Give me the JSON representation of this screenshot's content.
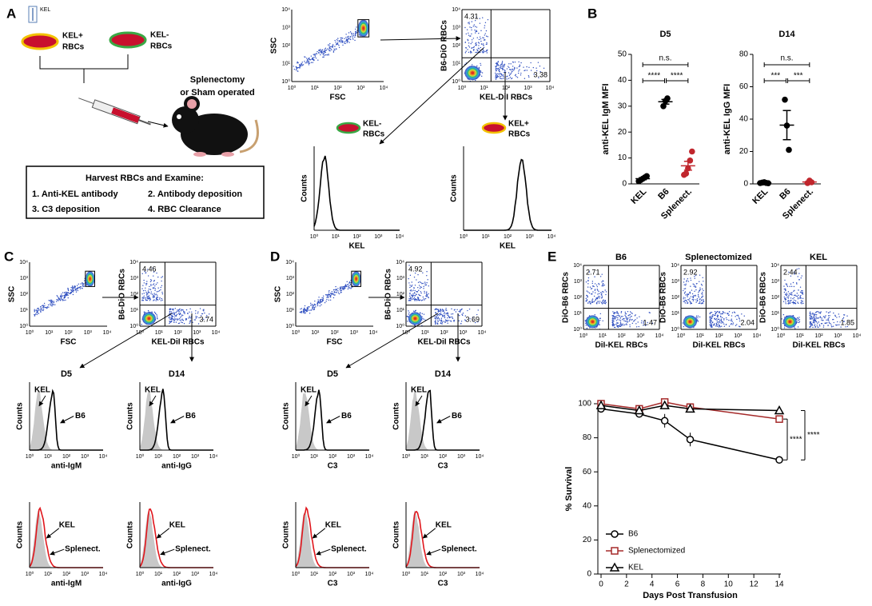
{
  "log_ticks": [
    "10⁰",
    "10¹",
    "10²",
    "10³",
    "10⁴"
  ],
  "panel_a": {
    "letter": "A",
    "kel_tag": "KEL",
    "kel_pos": [
      "KEL+",
      "RBCs"
    ],
    "kel_neg": [
      "KEL-",
      "RBCs"
    ],
    "surgery": [
      "Splenectomy",
      "or Sham operated"
    ],
    "box_title": "Harvest RBCs and Examine:",
    "box_items": [
      "1. Anti-KEL antibody",
      "2. Antibody deposition",
      "3. C3 deposition",
      "4. RBC Clearance"
    ],
    "gate": {
      "y_label": "SSC",
      "x_label": "FSC"
    },
    "quad": {
      "y_label": "B6-DiO RBCs",
      "x_label": "KEL-DiI RBCs",
      "upper_left": 4.31,
      "lower_right": 3.38
    },
    "hist_neg": {
      "title": [
        "KEL-",
        "RBCs"
      ],
      "y_label": "Counts",
      "x_label": "KEL"
    },
    "hist_pos": {
      "title": [
        "KEL+",
        "RBCs"
      ],
      "y_label": "Counts",
      "x_label": "KEL"
    }
  },
  "panel_b": {
    "letter": "B",
    "charts": [
      {
        "type": "scatter",
        "title": "D5",
        "y_label": "anti-KEL IgM MFI",
        "categories": [
          "KEL",
          "B6",
          "Splenect."
        ],
        "ylim": [
          0,
          50
        ],
        "yticks": [
          0,
          10,
          20,
          30,
          40,
          50
        ],
        "groups": [
          {
            "color": "#000000",
            "points": [
              1,
              1.5,
              2,
              2.5,
              3
            ],
            "mean": 2,
            "sem": 0.4
          },
          {
            "color": "#000000",
            "points": [
              30,
              32,
              33
            ],
            "mean": 31.7,
            "sem": 0.9
          },
          {
            "color": "#c0262d",
            "points": [
              3.5,
              4,
              6,
              9,
              12.5
            ],
            "mean": 7,
            "sem": 1.7
          }
        ],
        "significance": [
          "n.s.",
          "****",
          "****"
        ]
      },
      {
        "type": "scatter",
        "title": "D14",
        "y_label": "anti-KEL IgG MFI",
        "categories": [
          "KEL",
          "B6",
          "Splenect."
        ],
        "ylim": [
          0,
          80
        ],
        "yticks": [
          0,
          20,
          40,
          60,
          80
        ],
        "groups": [
          {
            "color": "#000000",
            "points": [
              0.5,
              0.8,
              1,
              0.6,
              0.4
            ],
            "mean": 0.7,
            "sem": 0.1
          },
          {
            "color": "#000000",
            "points": [
              52,
              36,
              21
            ],
            "mean": 36.3,
            "sem": 9
          },
          {
            "color": "#c0262d",
            "points": [
              0.5,
              2,
              1
            ],
            "mean": 1.2,
            "sem": 0.4
          }
        ],
        "significance": [
          "n.s.",
          "***",
          "***"
        ]
      }
    ]
  },
  "panel_c": {
    "letter": "C",
    "gate": {
      "y_label": "SSC",
      "x_label": "FSC"
    },
    "quad": {
      "y_label": "B6-DiO RBCs",
      "x_label": "KEL-DiI RBCs",
      "upper_left": 4.46,
      "lower_right": 3.74
    },
    "hists": [
      {
        "title": "D5",
        "arrow_a": "KEL",
        "arrow_b": "B6",
        "y_label": "Counts",
        "x_label": "anti-IgM"
      },
      {
        "title": "D14",
        "arrow_a": "KEL",
        "arrow_b": "B6",
        "y_label": "Counts",
        "x_label": "anti-IgG"
      }
    ],
    "red_hists": [
      {
        "arrow_a": "KEL",
        "arrow_b": "Splenect.",
        "y_label": "Counts",
        "x_label": "anti-IgM"
      },
      {
        "arrow_a": "KEL",
        "arrow_b": "Splenect.",
        "y_label": "Counts",
        "x_label": "anti-IgG"
      }
    ]
  },
  "panel_d": {
    "letter": "D",
    "gate": {
      "y_label": "SSC",
      "x_label": "FSC"
    },
    "quad": {
      "y_label": "B6-DiO RBCs",
      "x_label": "KEL-DiI RBCs",
      "upper_left": 4.92,
      "lower_right": 3.69
    },
    "hists": [
      {
        "title": "D5",
        "arrow_a": "KEL",
        "arrow_b": "B6",
        "y_label": "Counts",
        "x_label": "C3"
      },
      {
        "title": "D14",
        "arrow_a": "KEL",
        "arrow_b": "B6",
        "y_label": "Counts",
        "x_label": "C3"
      }
    ],
    "red_hists": [
      {
        "arrow_a": "KEL",
        "arrow_b": "Splenect.",
        "y_label": "Counts",
        "x_label": "C3"
      },
      {
        "arrow_a": "KEL",
        "arrow_b": "Splenect.",
        "y_label": "Counts",
        "x_label": "C3"
      }
    ]
  },
  "panel_e": {
    "letter": "E",
    "flows": [
      {
        "title": "B6",
        "y_label": "DiO-B6 RBCs",
        "x_label": "DiI-KEL RBCs",
        "upper_left": 2.71,
        "lower_right": 1.47
      },
      {
        "title": "Splenectomized",
        "y_label": "DiO-B6 RBCs",
        "x_label": "DiI-KEL RBCs",
        "upper_left": 2.92,
        "lower_right": 2.04
      },
      {
        "title": "KEL",
        "y_label": "DiO-B6 RBCs",
        "x_label": "DiI-KEL RBCs",
        "upper_left": 2.44,
        "lower_right": 1.85
      }
    ],
    "survival": {
      "type": "line",
      "x": [
        0,
        3,
        5,
        7,
        14
      ],
      "xlim": [
        0,
        14
      ],
      "xticks": [
        0,
        2,
        4,
        6,
        8,
        10,
        12,
        14
      ],
      "ylim": [
        0,
        100
      ],
      "yticks": [
        0,
        20,
        40,
        60,
        80,
        100
      ],
      "y_label": "% Survival",
      "x_label": "Days Post Transfusion",
      "series": [
        {
          "name": "B6",
          "color": "#000000",
          "marker": "circle",
          "values": [
            97,
            94,
            90,
            79,
            67
          ],
          "errors": [
            1,
            1,
            4,
            4,
            1
          ]
        },
        {
          "name": "Splenectomized",
          "color": "#a52a2a",
          "marker": "square",
          "values": [
            100,
            97,
            101,
            98,
            91
          ],
          "errors": [
            1,
            1,
            1.5,
            1,
            1.5
          ]
        },
        {
          "name": "KEL",
          "color": "#000000",
          "marker": "triangle",
          "values": [
            99,
            96,
            99,
            97,
            96
          ],
          "errors": [
            0.5,
            0.5,
            1,
            1,
            0.5
          ]
        }
      ],
      "significance": [
        "****",
        "****"
      ]
    }
  }
}
